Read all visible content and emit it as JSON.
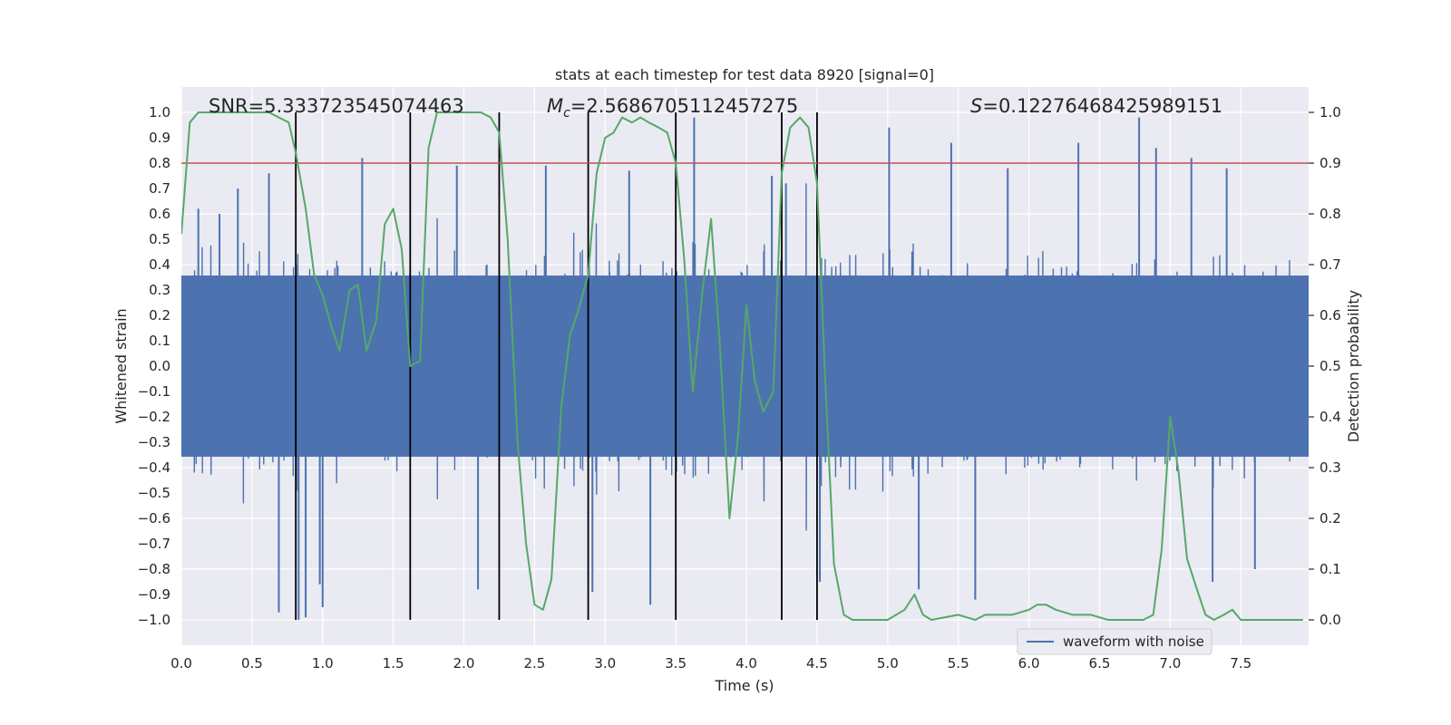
{
  "chart_data": {
    "type": "line",
    "title": "stats at each timestep for test data 8920 [signal=0]",
    "xlabel": "Time (s)",
    "ylabel": "Whitened strain",
    "y2label": "Detection probability",
    "xlim": [
      0.0,
      7.98
    ],
    "ylim": [
      -1.1,
      1.1
    ],
    "y2lim": [
      -0.05,
      1.05
    ],
    "x_ticks": [
      0.0,
      0.5,
      1.0,
      1.5,
      2.0,
      2.5,
      3.0,
      3.5,
      4.0,
      4.5,
      5.0,
      5.5,
      6.0,
      6.5,
      7.0,
      7.5
    ],
    "x_tick_labels": [
      "0.0",
      "0.5",
      "1.0",
      "1.5",
      "2.0",
      "2.5",
      "3.0",
      "3.5",
      "4.0",
      "4.5",
      "5.0",
      "5.5",
      "6.0",
      "6.5",
      "7.0",
      "7.5"
    ],
    "y_ticks": [
      1.0,
      0.9,
      0.8,
      0.7,
      0.6,
      0.5,
      0.4,
      0.3,
      0.2,
      0.1,
      0.0,
      -0.1,
      -0.2,
      -0.3,
      -0.4,
      -0.5,
      -0.6,
      -0.7,
      -0.8,
      -0.9,
      -1.0
    ],
    "y_tick_labels": [
      "1.0",
      "0.9",
      "0.8",
      "0.7",
      "0.6",
      "0.5",
      "0.4",
      "0.3",
      "0.2",
      "0.1",
      "0.0",
      "−0.1",
      "−0.2",
      "−0.3",
      "−0.4",
      "−0.5",
      "−0.6",
      "−0.7",
      "−0.8",
      "−0.9",
      "−1.0"
    ],
    "y2_ticks": [
      1.0,
      0.9,
      0.8,
      0.7,
      0.6,
      0.5,
      0.4,
      0.3,
      0.2,
      0.1,
      0.0
    ],
    "y2_tick_labels": [
      "1.0",
      "0.9",
      "0.8",
      "0.7",
      "0.6",
      "0.5",
      "0.4",
      "0.3",
      "0.2",
      "0.1",
      "0.0"
    ],
    "annotations": {
      "snr": "SNR=5.333723545074463",
      "mc_symbol": "M",
      "mc_sub": "c",
      "mc_value": "=2.5686705112457275",
      "s_symbol": "S",
      "s_value": "=0.12276468425989151"
    },
    "threshold_line": {
      "y2": 0.9,
      "color": "#c44e52"
    },
    "vertical_lines_x": [
      0.81,
      1.62,
      2.25,
      2.88,
      3.5,
      4.25,
      4.5
    ],
    "vertical_lines_y_range": [
      -1.0,
      1.0
    ],
    "series": [
      {
        "name": "waveform with noise",
        "color": "#4c72b0",
        "axis": "left",
        "description": "dense whitened strain noise, core band about ±0.4 with spikes up to ±1.0",
        "core_amplitude": 0.42,
        "spike_peaks": [
          {
            "x": 0.12,
            "y": 0.62
          },
          {
            "x": 0.27,
            "y": 0.6
          },
          {
            "x": 0.4,
            "y": 0.7
          },
          {
            "x": 0.62,
            "y": 0.76
          },
          {
            "x": 0.69,
            "y": -0.97
          },
          {
            "x": 0.83,
            "y": -1.0
          },
          {
            "x": 0.88,
            "y": -0.99
          },
          {
            "x": 0.98,
            "y": -0.86
          },
          {
            "x": 1.0,
            "y": -0.95
          },
          {
            "x": 1.28,
            "y": 0.82
          },
          {
            "x": 1.95,
            "y": 0.79
          },
          {
            "x": 2.1,
            "y": -0.88
          },
          {
            "x": 2.58,
            "y": 0.79
          },
          {
            "x": 2.91,
            "y": -0.89
          },
          {
            "x": 3.17,
            "y": 0.77
          },
          {
            "x": 3.32,
            "y": -0.94
          },
          {
            "x": 3.63,
            "y": 0.98
          },
          {
            "x": 4.18,
            "y": 0.75
          },
          {
            "x": 4.28,
            "y": 0.72
          },
          {
            "x": 4.52,
            "y": -0.85
          },
          {
            "x": 5.01,
            "y": 0.94
          },
          {
            "x": 5.22,
            "y": -0.88
          },
          {
            "x": 5.45,
            "y": 0.88
          },
          {
            "x": 5.62,
            "y": -0.92
          },
          {
            "x": 5.85,
            "y": 0.78
          },
          {
            "x": 6.35,
            "y": 0.88
          },
          {
            "x": 6.78,
            "y": 0.98
          },
          {
            "x": 6.9,
            "y": 0.86
          },
          {
            "x": 7.15,
            "y": 0.82
          },
          {
            "x": 7.4,
            "y": 0.78
          },
          {
            "x": 7.3,
            "y": -0.85
          },
          {
            "x": 7.6,
            "y": -0.8
          }
        ]
      },
      {
        "name": "detection probability",
        "color": "#55a868",
        "axis": "right",
        "x": [
          0.0,
          0.06,
          0.12,
          0.25,
          0.5,
          0.62,
          0.69,
          0.76,
          0.81,
          0.88,
          0.94,
          1.0,
          1.06,
          1.12,
          1.19,
          1.25,
          1.31,
          1.38,
          1.44,
          1.5,
          1.56,
          1.62,
          1.69,
          1.75,
          1.81,
          1.88,
          2.0,
          2.12,
          2.19,
          2.25,
          2.31,
          2.38,
          2.44,
          2.5,
          2.56,
          2.62,
          2.69,
          2.75,
          2.81,
          2.88,
          2.94,
          3.0,
          3.06,
          3.12,
          3.19,
          3.25,
          3.31,
          3.38,
          3.44,
          3.5,
          3.56,
          3.62,
          3.69,
          3.75,
          3.81,
          3.88,
          3.94,
          4.0,
          4.06,
          4.12,
          4.19,
          4.25,
          4.31,
          4.38,
          4.44,
          4.5,
          4.56,
          4.62,
          4.69,
          4.75,
          4.81,
          4.88,
          4.94,
          5.0,
          5.06,
          5.12,
          5.19,
          5.25,
          5.31,
          5.5,
          5.62,
          5.69,
          5.75,
          5.81,
          5.88,
          6.0,
          6.06,
          6.12,
          6.19,
          6.31,
          6.44,
          6.56,
          6.75,
          6.81,
          6.88,
          6.94,
          7.0,
          7.06,
          7.12,
          7.19,
          7.25,
          7.31,
          7.38,
          7.44,
          7.5,
          7.62,
          7.75,
          7.94
        ],
        "values": [
          0.76,
          0.98,
          1.0,
          1.0,
          1.0,
          1.0,
          0.99,
          0.98,
          0.92,
          0.81,
          0.68,
          0.64,
          0.58,
          0.53,
          0.65,
          0.66,
          0.53,
          0.59,
          0.78,
          0.81,
          0.73,
          0.5,
          0.51,
          0.93,
          1.0,
          1.0,
          1.0,
          1.0,
          0.99,
          0.96,
          0.75,
          0.35,
          0.15,
          0.03,
          0.02,
          0.08,
          0.42,
          0.56,
          0.61,
          0.68,
          0.88,
          0.95,
          0.96,
          0.99,
          0.98,
          0.99,
          0.98,
          0.97,
          0.96,
          0.9,
          0.71,
          0.45,
          0.65,
          0.79,
          0.55,
          0.2,
          0.36,
          0.62,
          0.47,
          0.41,
          0.45,
          0.88,
          0.97,
          0.99,
          0.97,
          0.86,
          0.46,
          0.11,
          0.01,
          0.0,
          0.0,
          0.0,
          0.0,
          0.0,
          0.01,
          0.02,
          0.05,
          0.01,
          0.0,
          0.01,
          0.0,
          0.01,
          0.01,
          0.01,
          0.01,
          0.02,
          0.03,
          0.03,
          0.02,
          0.01,
          0.01,
          0.0,
          0.0,
          0.0,
          0.01,
          0.14,
          0.4,
          0.29,
          0.12,
          0.06,
          0.01,
          0.0,
          0.01,
          0.02,
          0.0,
          0.0,
          0.0,
          0.0
        ]
      }
    ],
    "legend": {
      "entries": [
        "waveform with noise"
      ],
      "position": "lower-right"
    }
  }
}
